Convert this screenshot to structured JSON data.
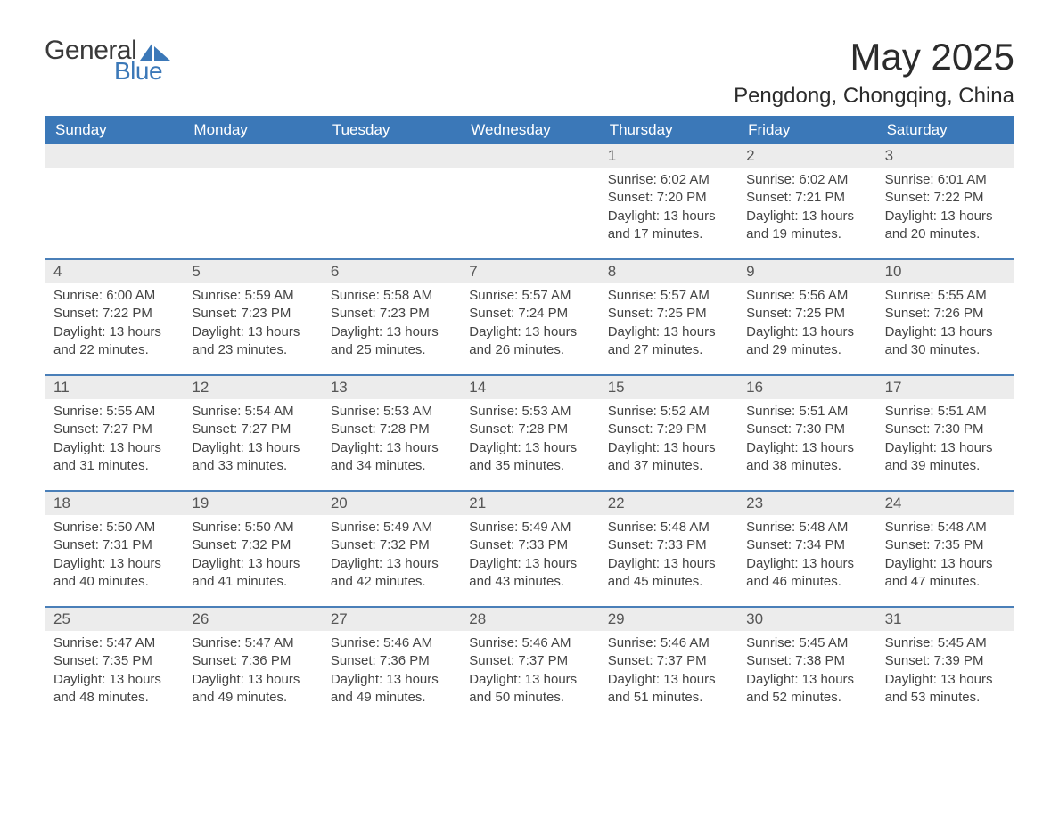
{
  "brand": {
    "word1": "General",
    "word2": "Blue"
  },
  "title": {
    "month": "May 2025",
    "location": "Pengdong, Chongqing, China"
  },
  "colors": {
    "header_bg": "#3b78b8",
    "header_text": "#ffffff",
    "band_bg": "#ececec",
    "rule": "#4a7fb8",
    "text": "#3a3a3a"
  },
  "daysOfWeek": [
    "Sunday",
    "Monday",
    "Tuesday",
    "Wednesday",
    "Thursday",
    "Friday",
    "Saturday"
  ],
  "weeks": [
    [
      {
        "n": "",
        "sunrise": "",
        "sunset": "",
        "day": ""
      },
      {
        "n": "",
        "sunrise": "",
        "sunset": "",
        "day": ""
      },
      {
        "n": "",
        "sunrise": "",
        "sunset": "",
        "day": ""
      },
      {
        "n": "",
        "sunrise": "",
        "sunset": "",
        "day": ""
      },
      {
        "n": "1",
        "sunrise": "6:02 AM",
        "sunset": "7:20 PM",
        "day": "13 hours and 17 minutes."
      },
      {
        "n": "2",
        "sunrise": "6:02 AM",
        "sunset": "7:21 PM",
        "day": "13 hours and 19 minutes."
      },
      {
        "n": "3",
        "sunrise": "6:01 AM",
        "sunset": "7:22 PM",
        "day": "13 hours and 20 minutes."
      }
    ],
    [
      {
        "n": "4",
        "sunrise": "6:00 AM",
        "sunset": "7:22 PM",
        "day": "13 hours and 22 minutes."
      },
      {
        "n": "5",
        "sunrise": "5:59 AM",
        "sunset": "7:23 PM",
        "day": "13 hours and 23 minutes."
      },
      {
        "n": "6",
        "sunrise": "5:58 AM",
        "sunset": "7:23 PM",
        "day": "13 hours and 25 minutes."
      },
      {
        "n": "7",
        "sunrise": "5:57 AM",
        "sunset": "7:24 PM",
        "day": "13 hours and 26 minutes."
      },
      {
        "n": "8",
        "sunrise": "5:57 AM",
        "sunset": "7:25 PM",
        "day": "13 hours and 27 minutes."
      },
      {
        "n": "9",
        "sunrise": "5:56 AM",
        "sunset": "7:25 PM",
        "day": "13 hours and 29 minutes."
      },
      {
        "n": "10",
        "sunrise": "5:55 AM",
        "sunset": "7:26 PM",
        "day": "13 hours and 30 minutes."
      }
    ],
    [
      {
        "n": "11",
        "sunrise": "5:55 AM",
        "sunset": "7:27 PM",
        "day": "13 hours and 31 minutes."
      },
      {
        "n": "12",
        "sunrise": "5:54 AM",
        "sunset": "7:27 PM",
        "day": "13 hours and 33 minutes."
      },
      {
        "n": "13",
        "sunrise": "5:53 AM",
        "sunset": "7:28 PM",
        "day": "13 hours and 34 minutes."
      },
      {
        "n": "14",
        "sunrise": "5:53 AM",
        "sunset": "7:28 PM",
        "day": "13 hours and 35 minutes."
      },
      {
        "n": "15",
        "sunrise": "5:52 AM",
        "sunset": "7:29 PM",
        "day": "13 hours and 37 minutes."
      },
      {
        "n": "16",
        "sunrise": "5:51 AM",
        "sunset": "7:30 PM",
        "day": "13 hours and 38 minutes."
      },
      {
        "n": "17",
        "sunrise": "5:51 AM",
        "sunset": "7:30 PM",
        "day": "13 hours and 39 minutes."
      }
    ],
    [
      {
        "n": "18",
        "sunrise": "5:50 AM",
        "sunset": "7:31 PM",
        "day": "13 hours and 40 minutes."
      },
      {
        "n": "19",
        "sunrise": "5:50 AM",
        "sunset": "7:32 PM",
        "day": "13 hours and 41 minutes."
      },
      {
        "n": "20",
        "sunrise": "5:49 AM",
        "sunset": "7:32 PM",
        "day": "13 hours and 42 minutes."
      },
      {
        "n": "21",
        "sunrise": "5:49 AM",
        "sunset": "7:33 PM",
        "day": "13 hours and 43 minutes."
      },
      {
        "n": "22",
        "sunrise": "5:48 AM",
        "sunset": "7:33 PM",
        "day": "13 hours and 45 minutes."
      },
      {
        "n": "23",
        "sunrise": "5:48 AM",
        "sunset": "7:34 PM",
        "day": "13 hours and 46 minutes."
      },
      {
        "n": "24",
        "sunrise": "5:48 AM",
        "sunset": "7:35 PM",
        "day": "13 hours and 47 minutes."
      }
    ],
    [
      {
        "n": "25",
        "sunrise": "5:47 AM",
        "sunset": "7:35 PM",
        "day": "13 hours and 48 minutes."
      },
      {
        "n": "26",
        "sunrise": "5:47 AM",
        "sunset": "7:36 PM",
        "day": "13 hours and 49 minutes."
      },
      {
        "n": "27",
        "sunrise": "5:46 AM",
        "sunset": "7:36 PM",
        "day": "13 hours and 49 minutes."
      },
      {
        "n": "28",
        "sunrise": "5:46 AM",
        "sunset": "7:37 PM",
        "day": "13 hours and 50 minutes."
      },
      {
        "n": "29",
        "sunrise": "5:46 AM",
        "sunset": "7:37 PM",
        "day": "13 hours and 51 minutes."
      },
      {
        "n": "30",
        "sunrise": "5:45 AM",
        "sunset": "7:38 PM",
        "day": "13 hours and 52 minutes."
      },
      {
        "n": "31",
        "sunrise": "5:45 AM",
        "sunset": "7:39 PM",
        "day": "13 hours and 53 minutes."
      }
    ]
  ],
  "labels": {
    "sunrise": "Sunrise: ",
    "sunset": "Sunset: ",
    "daylight": "Daylight: "
  }
}
